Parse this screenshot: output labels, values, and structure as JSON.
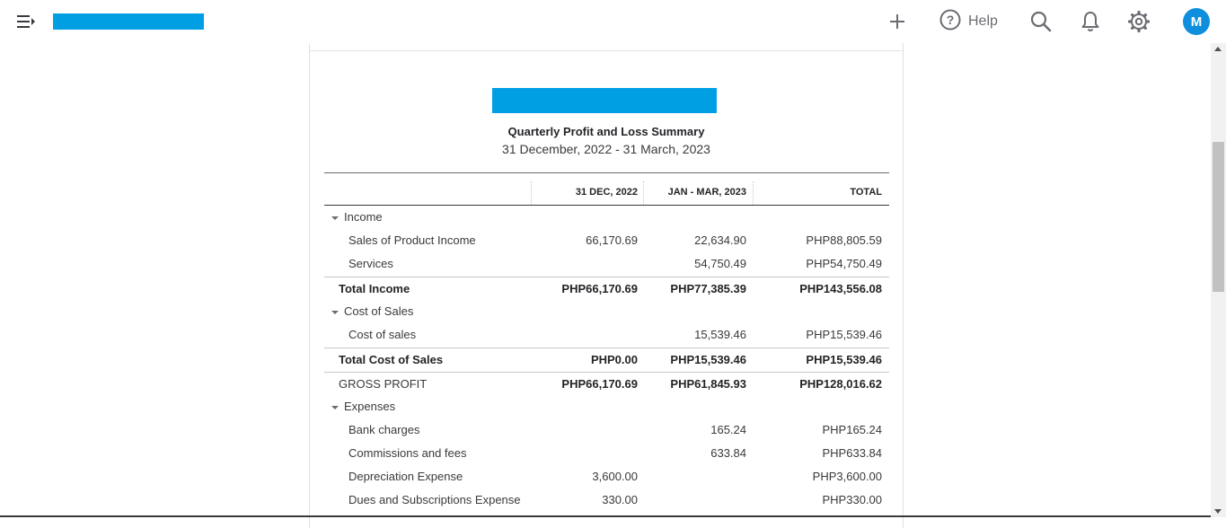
{
  "topbar": {
    "help_label": "Help",
    "avatar_initial": "M",
    "icons": [
      "menu-collapse-icon",
      "plus-icon",
      "help-icon",
      "search-icon",
      "bell-icon",
      "gear-icon"
    ]
  },
  "report": {
    "title": "Quarterly Profit and Loss Summary",
    "period": "31 December, 2022 - 31 March, 2023",
    "columns": [
      "31 DEC, 2022",
      "JAN - MAR, 2023",
      "TOTAL"
    ],
    "rows": [
      {
        "label": "Income",
        "c1": "",
        "c2": "",
        "c3": ""
      },
      {
        "label": "Sales of Product Income",
        "c1": "66,170.69",
        "c2": "22,634.90",
        "c3": "PHP88,805.59"
      },
      {
        "label": "Services",
        "c1": "",
        "c2": "54,750.49",
        "c3": "PHP54,750.49"
      },
      {
        "label": "Total Income",
        "c1": "PHP66,170.69",
        "c2": "PHP77,385.39",
        "c3": "PHP143,556.08"
      },
      {
        "label": "Cost of Sales",
        "c1": "",
        "c2": "",
        "c3": ""
      },
      {
        "label": "Cost of sales",
        "c1": "",
        "c2": "15,539.46",
        "c3": "PHP15,539.46"
      },
      {
        "label": "Total Cost of Sales",
        "c1": "PHP0.00",
        "c2": "PHP15,539.46",
        "c3": "PHP15,539.46"
      },
      {
        "label": "GROSS PROFIT",
        "c1": "PHP66,170.69",
        "c2": "PHP61,845.93",
        "c3": "PHP128,016.62"
      },
      {
        "label": "Expenses",
        "c1": "",
        "c2": "",
        "c3": ""
      },
      {
        "label": "Bank charges",
        "c1": "",
        "c2": "165.24",
        "c3": "PHP165.24"
      },
      {
        "label": "Commissions and fees",
        "c1": "",
        "c2": "633.84",
        "c3": "PHP633.84"
      },
      {
        "label": "Depreciation Expense",
        "c1": "3,600.00",
        "c2": "",
        "c3": "PHP3,600.00"
      },
      {
        "label": "Dues and Subscriptions Expense",
        "c1": "330.00",
        "c2": "",
        "c3": "PHP330.00"
      }
    ]
  },
  "colors": {
    "brand_redaction": "#009fe3",
    "avatar_bg": "#0f8ede",
    "text": "#393a3d"
  }
}
